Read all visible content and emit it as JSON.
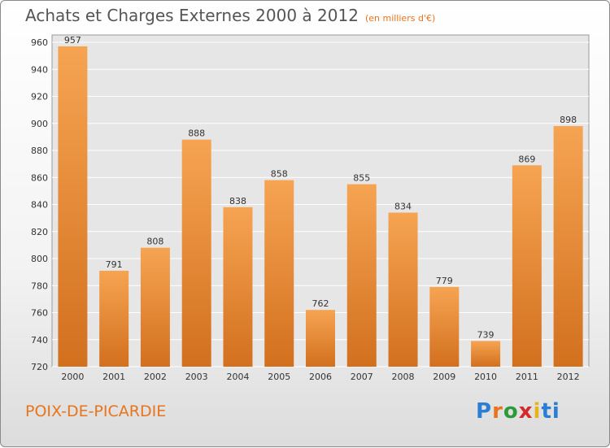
{
  "header": {
    "title": "Achats et Charges Externes 2000 à 2012",
    "subtitle": "(en milliers d'€)"
  },
  "footer": {
    "place": "POIX-DE-PICARDIE",
    "logo_text": "Proxiti"
  },
  "colors": {
    "bar_top": "#f6a452",
    "bar_bottom": "#d2701e",
    "accent": "#e8741c"
  },
  "chart_data": {
    "type": "bar",
    "title": "Achats et Charges Externes 2000 à 2012",
    "subtitle": "(en milliers d'€)",
    "categories": [
      "2000",
      "2001",
      "2002",
      "2003",
      "2004",
      "2005",
      "2006",
      "2007",
      "2008",
      "2009",
      "2010",
      "2011",
      "2012"
    ],
    "values": [
      957,
      791,
      808,
      888,
      838,
      858,
      762,
      855,
      834,
      779,
      739,
      869,
      898
    ],
    "ylim": [
      720,
      960
    ],
    "yticks": [
      720,
      740,
      760,
      780,
      800,
      820,
      840,
      860,
      880,
      900,
      920,
      940,
      960
    ],
    "grid": true,
    "legend": "none"
  }
}
